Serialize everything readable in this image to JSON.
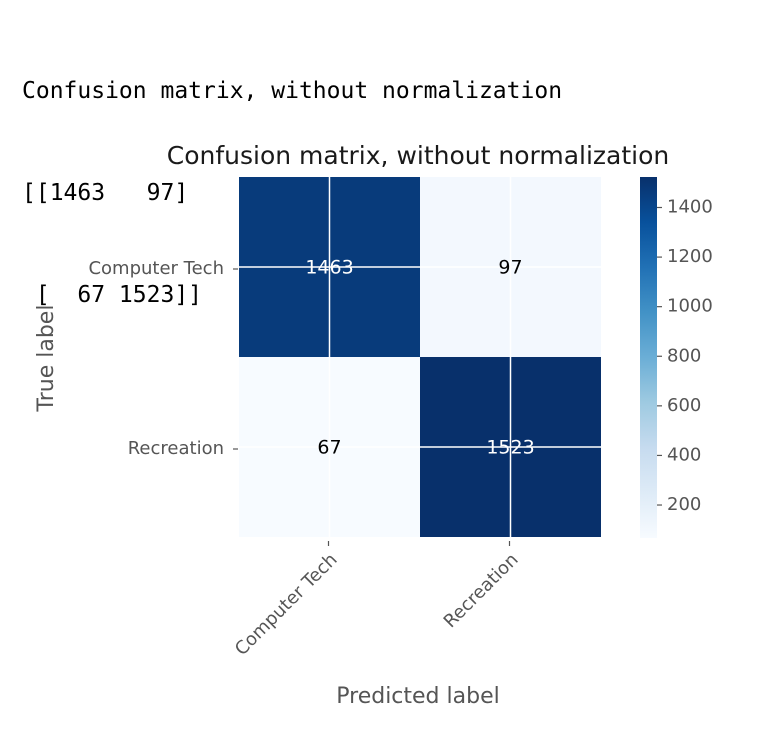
{
  "console": {
    "header": "Confusion matrix, without normalization",
    "line1": "[[1463   97]",
    "line2": " [  67 1523]]"
  },
  "chart_data": {
    "type": "heatmap",
    "title": "Confusion matrix, without normalization",
    "xlabel": "Predicted label",
    "ylabel": "True label",
    "x_categories": [
      "Computer Tech",
      "Recreation"
    ],
    "y_categories": [
      "Computer Tech",
      "Recreation"
    ],
    "matrix": [
      [
        1463,
        97
      ],
      [
        67,
        1523
      ]
    ],
    "cell_labels": [
      [
        "1463",
        "97"
      ],
      [
        "67",
        "1523"
      ]
    ],
    "colormap": "Blues",
    "color_range": [
      67,
      1523
    ],
    "colorbar_ticks": [
      200,
      400,
      600,
      800,
      1000,
      1200,
      1400
    ],
    "grid": true,
    "colors": {
      "cmap_low": "#f7fbff",
      "cmap_high": "#08306b"
    }
  }
}
